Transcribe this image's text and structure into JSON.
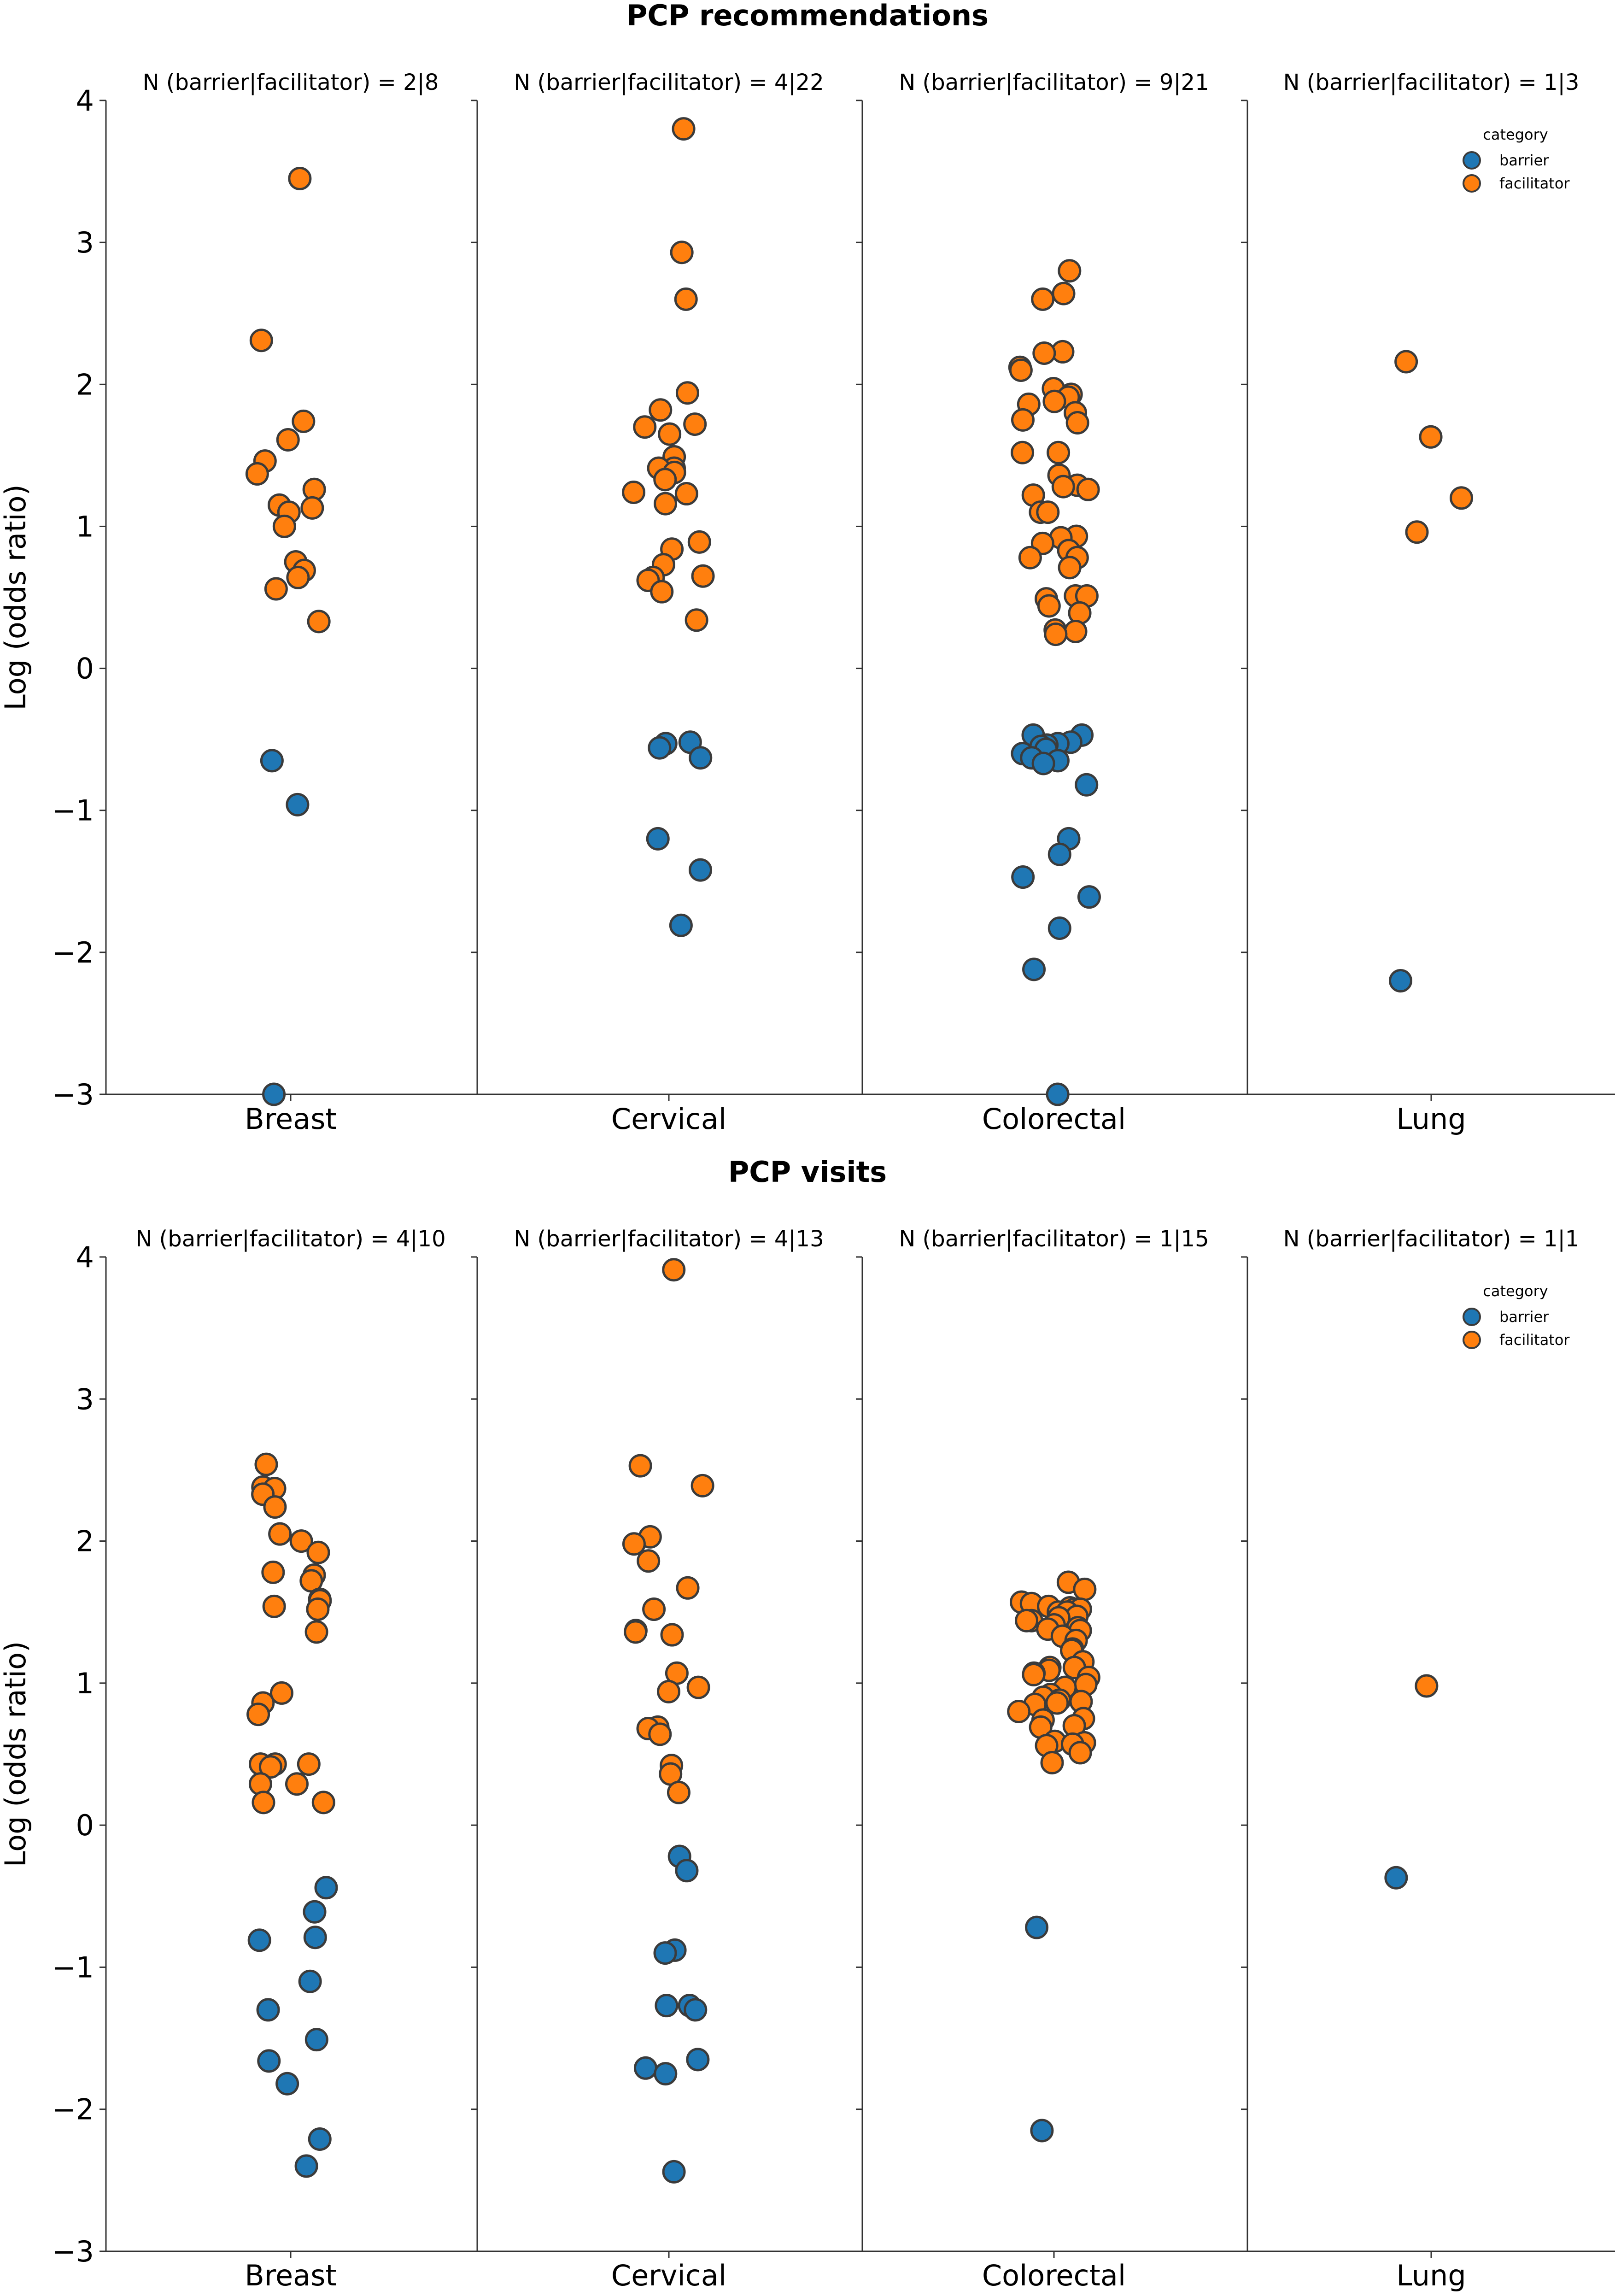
{
  "chart_data": [
    {
      "type": "scatter",
      "subtype": "strip",
      "title": "PCP recommendations",
      "ylabel": "Log (odds ratio)",
      "ylim": [
        -3,
        4
      ],
      "yticks": [
        -3,
        -2,
        -1,
        0,
        1,
        2,
        3,
        4
      ],
      "ytick_labels": [
        "−3",
        "−2",
        "−1",
        "0",
        "1",
        "2",
        "3",
        "4"
      ],
      "legend": {
        "title": "category",
        "placement": "top-right",
        "entries": [
          {
            "label": "barrier",
            "color": "#1f77b4"
          },
          {
            "label": "facilitator",
            "color": "#ff7f0e"
          }
        ]
      },
      "panels": [
        {
          "category": "Breast",
          "title": "N (barrier|facilitator) = 2|8",
          "barrier": [
            -0.65,
            -0.96,
            -3.0
          ],
          "facilitator": [
            3.45,
            2.31,
            1.74,
            1.61,
            1.46,
            1.37,
            1.26,
            1.15,
            1.13,
            1.1,
            1.0,
            0.75,
            0.69,
            0.64,
            0.56,
            0.33
          ]
        },
        {
          "category": "Cervical",
          "title": "N (barrier|facilitator) = 4|22",
          "barrier": [
            -0.52,
            -0.53,
            -0.56,
            -0.63,
            -1.2,
            -1.42,
            -1.81
          ],
          "facilitator": [
            3.8,
            2.93,
            2.6,
            1.94,
            1.82,
            1.72,
            1.7,
            1.65,
            1.49,
            1.41,
            1.41,
            1.38,
            1.33,
            1.24,
            1.23,
            1.16,
            0.89,
            0.84,
            0.73,
            0.65,
            0.64,
            0.62,
            0.54,
            0.34
          ]
        },
        {
          "category": "Colorectal",
          "title": "N (barrier|facilitator) = 9|21",
          "barrier": [
            -0.47,
            -0.47,
            -0.52,
            -0.53,
            -0.54,
            -0.55,
            -0.57,
            -0.6,
            -0.63,
            -0.65,
            -0.67,
            -0.82,
            -1.2,
            -1.31,
            -1.47,
            -1.61,
            -1.83,
            -2.12,
            -3.0
          ],
          "facilitator": [
            2.8,
            2.64,
            2.6,
            2.23,
            2.22,
            2.12,
            2.1,
            1.97,
            1.93,
            1.91,
            1.88,
            1.86,
            1.8,
            1.75,
            1.73,
            1.52,
            1.52,
            1.36,
            1.29,
            1.28,
            1.26,
            1.22,
            1.1,
            1.1,
            0.93,
            0.92,
            0.88,
            0.83,
            0.78,
            0.78,
            0.71,
            0.51,
            0.51,
            0.49,
            0.44,
            0.39,
            0.27,
            0.26,
            0.24
          ]
        },
        {
          "category": "Lung",
          "title": "N (barrier|facilitator) = 1|3",
          "barrier": [
            -2.2
          ],
          "facilitator": [
            2.16,
            1.63,
            1.2,
            0.96
          ]
        }
      ]
    },
    {
      "type": "scatter",
      "subtype": "strip",
      "title": "PCP visits",
      "ylabel": "Log (odds ratio)",
      "ylim": [
        -3,
        4
      ],
      "yticks": [
        -3,
        -2,
        -1,
        0,
        1,
        2,
        3,
        4
      ],
      "ytick_labels": [
        "−3",
        "−2",
        "−1",
        "0",
        "1",
        "2",
        "3",
        "4"
      ],
      "legend": {
        "title": "category",
        "placement": "top-right",
        "entries": [
          {
            "label": "barrier",
            "color": "#1f77b4"
          },
          {
            "label": "facilitator",
            "color": "#ff7f0e"
          }
        ]
      },
      "panels": [
        {
          "category": "Breast",
          "title": "N (barrier|facilitator) = 4|10",
          "barrier": [
            -0.44,
            -0.61,
            -0.79,
            -0.81,
            -1.1,
            -1.3,
            -1.51,
            -1.66,
            -1.82,
            -2.21,
            -2.4
          ],
          "facilitator": [
            2.54,
            2.38,
            2.37,
            2.33,
            2.24,
            2.05,
            2.0,
            1.92,
            1.78,
            1.76,
            1.72,
            1.59,
            1.58,
            1.54,
            1.52,
            1.36,
            0.93,
            0.86,
            0.78,
            0.43,
            0.43,
            0.43,
            0.41,
            0.29,
            0.29,
            0.16,
            0.16
          ]
        },
        {
          "category": "Cervical",
          "title": "N (barrier|facilitator) = 4|13",
          "barrier": [
            -0.22,
            -0.32,
            -0.88,
            -0.9,
            -1.27,
            -1.27,
            -1.3,
            -1.65,
            -1.71,
            -1.75,
            -2.44
          ],
          "facilitator": [
            3.91,
            2.53,
            2.39,
            2.03,
            1.98,
            1.86,
            1.67,
            1.52,
            1.37,
            1.36,
            1.34,
            1.07,
            0.97,
            0.94,
            0.69,
            0.68,
            0.64,
            0.42,
            0.36,
            0.23
          ]
        },
        {
          "category": "Colorectal",
          "title": "N (barrier|facilitator) = 1|15",
          "barrier": [
            -0.72,
            -2.15
          ],
          "facilitator": [
            1.71,
            1.66,
            1.57,
            1.56,
            1.54,
            1.53,
            1.52,
            1.52,
            1.5,
            1.5,
            1.47,
            1.46,
            1.44,
            1.44,
            1.41,
            1.39,
            1.38,
            1.37,
            1.33,
            1.3,
            1.24,
            1.23,
            1.15,
            1.11,
            1.11,
            1.09,
            1.07,
            1.06,
            1.04,
            0.99,
            0.97,
            0.92,
            0.9,
            0.88,
            0.87,
            0.86,
            0.85,
            0.8,
            0.75,
            0.74,
            0.7,
            0.69,
            0.59,
            0.58,
            0.57,
            0.56,
            0.51,
            0.44
          ]
        },
        {
          "category": "Lung",
          "title": "N (barrier|facilitator) = 1|1",
          "barrier": [
            -0.37
          ],
          "facilitator": [
            0.98
          ]
        }
      ]
    }
  ]
}
